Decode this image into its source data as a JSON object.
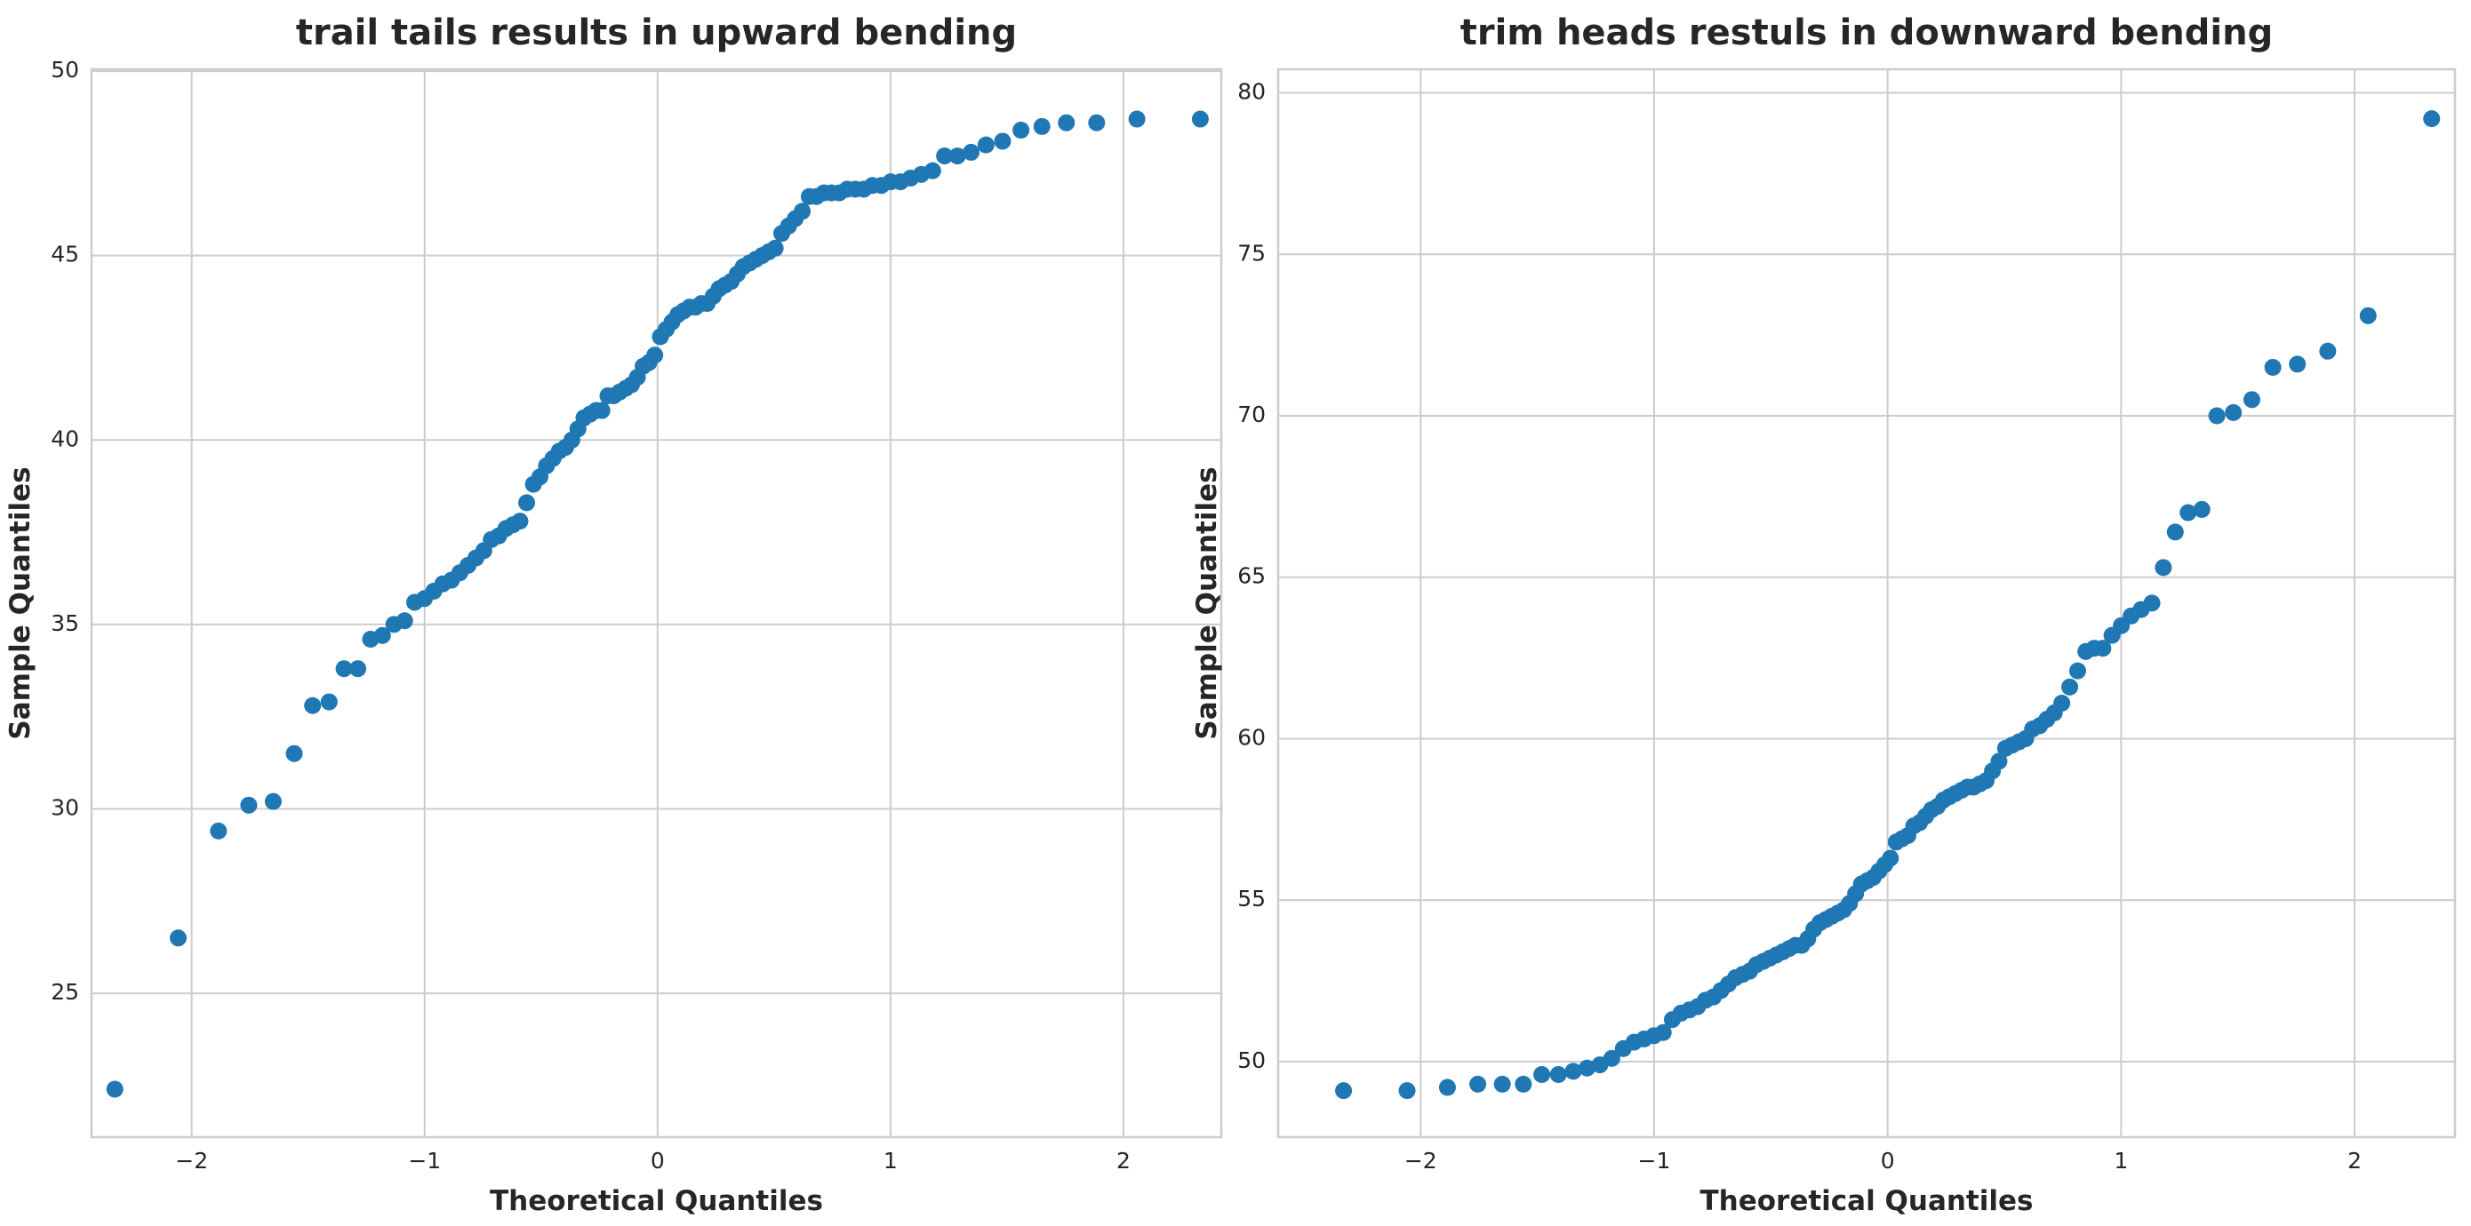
{
  "chart_data": [
    {
      "type": "scatter",
      "title": "trail tails results in upward bending",
      "xlabel": "Theoretical Quantiles",
      "ylabel": "Sample Quantiles",
      "color": "#1f77b4",
      "grid": true,
      "xlim": [
        -2.43,
        2.42
      ],
      "ylim": [
        21.1,
        50.05
      ],
      "xticks": [
        {
          "value": -2,
          "label": "−2"
        },
        {
          "value": -1,
          "label": "−1"
        },
        0,
        1,
        2
      ],
      "yticks": [
        25,
        30,
        35,
        40,
        45,
        50
      ],
      "x": [
        -2.33,
        -2.058,
        -1.885,
        -1.755,
        -1.65,
        -1.56,
        -1.481,
        -1.41,
        -1.346,
        -1.287,
        -1.232,
        -1.181,
        -1.132,
        -1.086,
        -1.043,
        -1.001,
        -0.961,
        -0.922,
        -0.885,
        -0.849,
        -0.814,
        -0.78,
        -0.746,
        -0.714,
        -0.682,
        -0.651,
        -0.621,
        -0.591,
        -0.562,
        -0.533,
        -0.505,
        -0.477,
        -0.449,
        -0.422,
        -0.395,
        -0.368,
        -0.342,
        -0.316,
        -0.29,
        -0.264,
        -0.239,
        -0.213,
        -0.188,
        -0.163,
        -0.137,
        -0.112,
        -0.087,
        -0.062,
        -0.037,
        -0.012,
        0.012,
        0.037,
        0.062,
        0.087,
        0.112,
        0.137,
        0.163,
        0.188,
        0.213,
        0.239,
        0.264,
        0.29,
        0.316,
        0.342,
        0.368,
        0.395,
        0.422,
        0.449,
        0.477,
        0.505,
        0.533,
        0.562,
        0.591,
        0.621,
        0.651,
        0.682,
        0.714,
        0.746,
        0.78,
        0.814,
        0.849,
        0.885,
        0.922,
        0.961,
        1.001,
        1.043,
        1.086,
        1.132,
        1.181,
        1.232,
        1.287,
        1.346,
        1.41,
        1.481,
        1.56,
        1.65,
        1.755,
        1.885,
        2.058,
        2.33
      ],
      "values": [
        22.4,
        26.5,
        29.4,
        30.1,
        30.2,
        31.5,
        32.8,
        32.9,
        33.8,
        33.8,
        34.6,
        34.7,
        35.0,
        35.1,
        35.6,
        35.7,
        35.9,
        36.1,
        36.2,
        36.4,
        36.6,
        36.8,
        37.0,
        37.3,
        37.4,
        37.6,
        37.7,
        37.8,
        38.3,
        38.8,
        39.0,
        39.3,
        39.5,
        39.7,
        39.8,
        40.0,
        40.3,
        40.6,
        40.7,
        40.8,
        40.8,
        41.2,
        41.2,
        41.3,
        41.4,
        41.5,
        41.7,
        42.0,
        42.1,
        42.3,
        42.8,
        43.0,
        43.2,
        43.4,
        43.5,
        43.6,
        43.6,
        43.7,
        43.7,
        43.9,
        44.1,
        44.2,
        44.3,
        44.5,
        44.7,
        44.8,
        44.9,
        45.0,
        45.1,
        45.2,
        45.6,
        45.8,
        46.0,
        46.2,
        46.6,
        46.6,
        46.7,
        46.7,
        46.7,
        46.8,
        46.8,
        46.8,
        46.9,
        46.9,
        47.0,
        47.0,
        47.1,
        47.2,
        47.3,
        47.7,
        47.7,
        47.8,
        48.0,
        48.1,
        48.4,
        48.5,
        48.6,
        48.6,
        48.7,
        48.7
      ]
    },
    {
      "type": "scatter",
      "title": "trim heads restuls in downward bending",
      "xlabel": "Theoretical Quantiles",
      "ylabel": "Sample Quantiles",
      "color": "#1f77b4",
      "grid": true,
      "xlim": [
        -2.61,
        2.43
      ],
      "ylim": [
        47.66,
        80.73
      ],
      "xticks": [
        {
          "value": -2,
          "label": "−2"
        },
        {
          "value": -1,
          "label": "−1"
        },
        0,
        1,
        2
      ],
      "yticks": [
        50,
        55,
        60,
        65,
        70,
        75,
        80
      ],
      "x": [
        -2.33,
        -2.058,
        -1.885,
        -1.755,
        -1.65,
        -1.56,
        -1.481,
        -1.41,
        -1.346,
        -1.287,
        -1.232,
        -1.181,
        -1.132,
        -1.086,
        -1.043,
        -1.001,
        -0.961,
        -0.922,
        -0.885,
        -0.849,
        -0.814,
        -0.78,
        -0.746,
        -0.714,
        -0.682,
        -0.651,
        -0.621,
        -0.591,
        -0.562,
        -0.533,
        -0.505,
        -0.477,
        -0.449,
        -0.422,
        -0.395,
        -0.368,
        -0.342,
        -0.316,
        -0.29,
        -0.264,
        -0.239,
        -0.213,
        -0.188,
        -0.163,
        -0.137,
        -0.112,
        -0.087,
        -0.062,
        -0.037,
        -0.012,
        0.012,
        0.037,
        0.062,
        0.087,
        0.112,
        0.137,
        0.163,
        0.188,
        0.213,
        0.239,
        0.264,
        0.29,
        0.316,
        0.342,
        0.368,
        0.395,
        0.422,
        0.449,
        0.477,
        0.505,
        0.533,
        0.562,
        0.591,
        0.621,
        0.651,
        0.682,
        0.714,
        0.746,
        0.78,
        0.814,
        0.849,
        0.885,
        0.922,
        0.961,
        1.001,
        1.043,
        1.086,
        1.132,
        1.181,
        1.232,
        1.287,
        1.346,
        1.41,
        1.481,
        1.56,
        1.65,
        1.755,
        1.885,
        2.058,
        2.33
      ],
      "values": [
        49.1,
        49.1,
        49.2,
        49.3,
        49.3,
        49.3,
        49.6,
        49.6,
        49.7,
        49.8,
        49.9,
        50.1,
        50.4,
        50.6,
        50.7,
        50.8,
        50.9,
        51.3,
        51.5,
        51.6,
        51.7,
        51.9,
        52.0,
        52.2,
        52.4,
        52.6,
        52.7,
        52.8,
        53.0,
        53.1,
        53.2,
        53.3,
        53.4,
        53.5,
        53.6,
        53.6,
        53.8,
        54.1,
        54.3,
        54.4,
        54.5,
        54.6,
        54.7,
        54.9,
        55.2,
        55.5,
        55.6,
        55.7,
        55.9,
        56.1,
        56.3,
        56.8,
        56.9,
        57.0,
        57.3,
        57.4,
        57.6,
        57.8,
        57.9,
        58.1,
        58.2,
        58.3,
        58.4,
        58.5,
        58.5,
        58.6,
        58.7,
        59.0,
        59.3,
        59.7,
        59.8,
        59.9,
        60.0,
        60.3,
        60.4,
        60.6,
        60.8,
        61.1,
        61.6,
        62.1,
        62.7,
        62.8,
        62.8,
        63.2,
        63.5,
        63.8,
        64.0,
        64.2,
        65.3,
        66.4,
        67.0,
        67.1,
        70.0,
        70.1,
        70.5,
        71.5,
        71.6,
        72.0,
        73.1,
        79.2
      ]
    }
  ]
}
